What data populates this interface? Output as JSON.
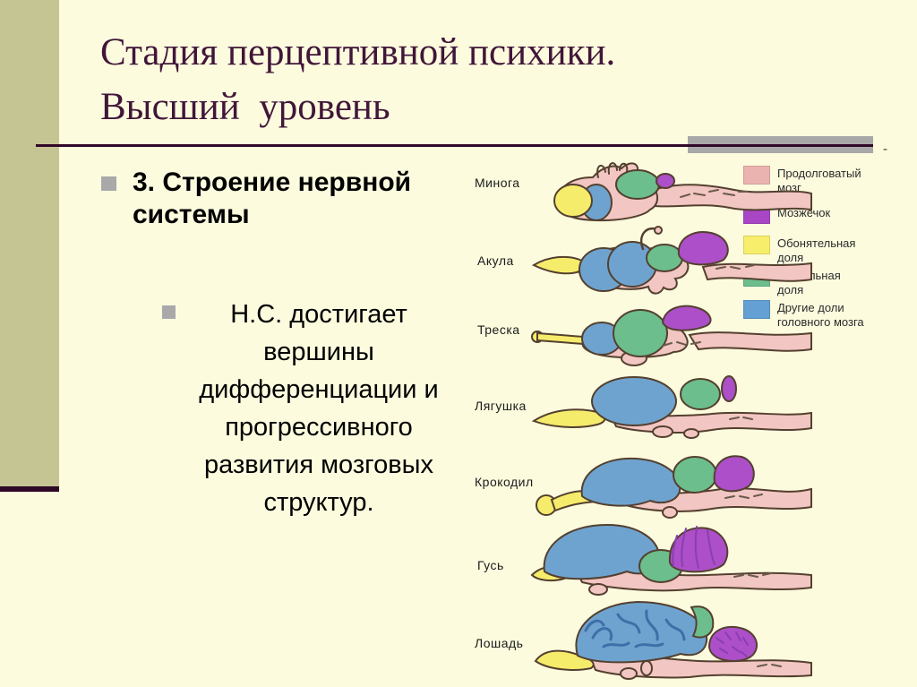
{
  "title": {
    "line1": "Стадия перцептивной психики.",
    "line2": "Высший  уровень"
  },
  "decor": {
    "dash": "-"
  },
  "bullets": [
    {
      "text": "3. Строение нервной\nсистемы"
    },
    {
      "text": "Н.С. достигает\nвершины\nдифференциации и\nпрогрессивного\nразвития мозговых\nструктур."
    }
  ],
  "diagram": {
    "animals": [
      {
        "name": "Минога"
      },
      {
        "name": "Акула"
      },
      {
        "name": "Треска"
      },
      {
        "name": "Лягушка"
      },
      {
        "name": "Крокодил"
      },
      {
        "name": "Гусь"
      },
      {
        "name": "Лошадь"
      }
    ],
    "legend": [
      {
        "label": "Продолговатый\nмозг",
        "color": "#EBB3AF"
      },
      {
        "label": "Мозжечок",
        "color": "#A846C6"
      },
      {
        "label": "Обонятельная\nдоля",
        "color": "#F7EE6B"
      },
      {
        "label": "Зрительная\nдоля",
        "color": "#6CBE8C"
      },
      {
        "label": "Другие доли\nголовного мозга",
        "color": "#64A0D3"
      }
    ],
    "palette": {
      "body_pink": "#F2C6C2",
      "olfactory_yellow": "#F6EC6C",
      "forebrain_blue": "#6FA3CF",
      "optic_green": "#6CBE8C",
      "cerebellum_purple": "#AC4FC8",
      "outline": "#54402F",
      "gyri_blue": "#3E6FA8",
      "cerebellum_lines": "#8A3FAE",
      "scribble": "#6B5A4A"
    }
  },
  "colors": {
    "background": "#FCFBDE",
    "accent_band": "#C5C493",
    "title_text": "#411639",
    "rule": "#31082A",
    "gray_bar": "#A8A8A8"
  }
}
